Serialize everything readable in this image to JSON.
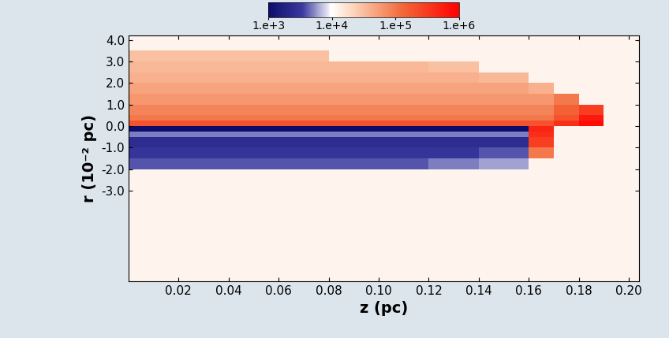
{
  "chart_data": {
    "type": "heatmap",
    "xlabel": "z (pc)",
    "ylabel": "r (10⁻² pc)",
    "xlim": [
      0,
      0.204
    ],
    "ylim": [
      -7.2,
      4.2
    ],
    "xticks": [
      0.02,
      0.04,
      0.06,
      0.08,
      {
        "value": 0.1,
        "label": "0.10"
      },
      0.12,
      0.14,
      0.16,
      0.18,
      {
        "value": 0.2,
        "label": "0.20"
      }
    ],
    "yticks": [
      {
        "value": 4,
        "label": "4.0"
      },
      {
        "value": 3,
        "label": "3.0"
      },
      {
        "value": 2,
        "label": "2.0"
      },
      {
        "value": 1,
        "label": "1.0"
      },
      {
        "value": 0,
        "label": "0.0"
      },
      {
        "value": -1,
        "label": "-1.0"
      },
      {
        "value": -2,
        "label": "-2.0"
      },
      {
        "value": -3,
        "label": "-3.0"
      }
    ],
    "x_edges": [
      0,
      0.02,
      0.04,
      0.06,
      0.08,
      0.1,
      0.12,
      0.14,
      0.16,
      0.17,
      0.18,
      0.19,
      0.204
    ],
    "y_edges": [
      -7.2,
      -4,
      -3,
      -2.5,
      -2,
      -1.5,
      -1,
      -0.5,
      -0.25,
      0,
      0.25,
      0.5,
      1,
      1.5,
      2,
      2.5,
      3,
      3.5,
      4.2
    ],
    "cells": [
      [
        12000,
        12000,
        12000,
        12000,
        12000,
        12000,
        12000,
        12000,
        12000,
        12000,
        12000,
        12000
      ],
      [
        12000,
        12000,
        12000,
        12000,
        12000,
        12000,
        12000,
        12000,
        12000,
        12000,
        12000,
        12000
      ],
      [
        12000,
        12000,
        12000,
        12000,
        12000,
        12000,
        12000,
        12000,
        12000,
        12000,
        12000,
        12000
      ],
      [
        12000,
        12000,
        12000,
        12000,
        12000,
        12000,
        12000,
        12000,
        12000,
        12000,
        12000,
        12000
      ],
      [
        4000,
        4000,
        4000,
        4000,
        4000,
        4000,
        5000,
        6000,
        12000,
        12000,
        12000,
        12000
      ],
      [
        3000,
        3000,
        3000,
        3000,
        3000,
        3000,
        3000,
        4000,
        100000,
        12000,
        12000,
        12000
      ],
      [
        2500,
        2500,
        2500,
        2500,
        2500,
        2500,
        2500,
        2500,
        300000,
        12000,
        12000,
        12000
      ],
      [
        5000,
        5000,
        5000,
        5000,
        5000,
        5000,
        5000,
        5000,
        400000,
        12000,
        12000,
        12000
      ],
      [
        1000,
        1000,
        1000,
        1000,
        1000,
        1000,
        1000,
        1000,
        500000,
        12000,
        12000,
        12000
      ],
      [
        200000,
        200000,
        200000,
        200000,
        200000,
        200000,
        200000,
        200000,
        200000,
        400000,
        800000,
        12000
      ],
      [
        100000,
        100000,
        100000,
        100000,
        100000,
        100000,
        100000,
        100000,
        100000,
        200000,
        600000,
        12000
      ],
      [
        80000,
        80000,
        80000,
        80000,
        80000,
        80000,
        80000,
        80000,
        80000,
        150000,
        300000,
        12000
      ],
      [
        60000,
        60000,
        60000,
        60000,
        60000,
        60000,
        60000,
        60000,
        60000,
        100000,
        12000,
        12000
      ],
      [
        50000,
        50000,
        50000,
        50000,
        50000,
        50000,
        50000,
        50000,
        40000,
        12000,
        12000,
        12000
      ],
      [
        40000,
        40000,
        40000,
        40000,
        40000,
        40000,
        40000,
        35000,
        12000,
        12000,
        12000,
        12000
      ],
      [
        35000,
        35000,
        35000,
        35000,
        35000,
        35000,
        30000,
        12000,
        12000,
        12000,
        12000,
        12000
      ],
      [
        30000,
        30000,
        30000,
        30000,
        12000,
        12000,
        12000,
        12000,
        12000,
        12000,
        12000,
        12000
      ],
      [
        12000,
        12000,
        12000,
        12000,
        12000,
        12000,
        12000,
        12000,
        12000,
        12000,
        12000,
        12000
      ]
    ],
    "colorbar": {
      "range": [
        1000,
        1000000
      ],
      "ticks": [
        {
          "value": 1000,
          "label": "1.e+3"
        },
        {
          "value": 10000,
          "label": "1.e+4"
        },
        {
          "value": 100000,
          "label": "1.e+5"
        },
        {
          "value": 1000000,
          "label": "1.e+6"
        }
      ]
    }
  }
}
